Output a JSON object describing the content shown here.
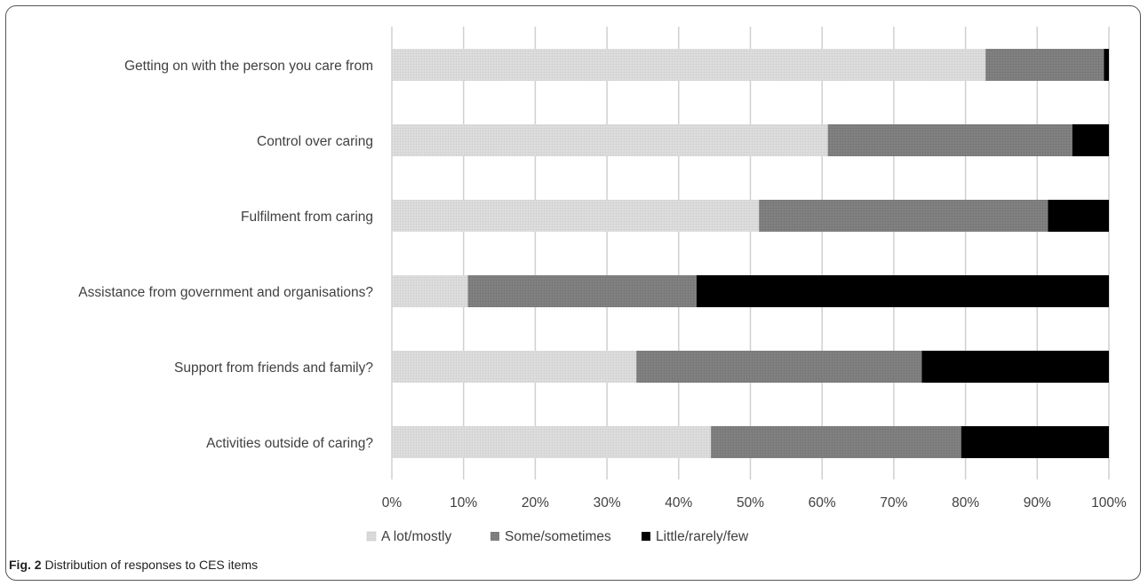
{
  "chart_data": {
    "type": "bar",
    "orientation": "horizontal",
    "stacked": true,
    "percent": true,
    "categories": [
      "Getting on with the person you care from",
      "Control over caring",
      "Fulfilment from caring",
      "Assistance from government and organisations?",
      "Support from friends and family?",
      "Activities outside of caring?"
    ],
    "series": [
      {
        "name": "A lot/mostly",
        "color": "#d9d9d9",
        "values": [
          82.8,
          60.8,
          51.2,
          10.6,
          34.1,
          44.5
        ]
      },
      {
        "name": "Some/sometimes",
        "color": "#7f7f7f",
        "values": [
          16.5,
          34.1,
          40.3,
          31.9,
          39.8,
          34.9
        ]
      },
      {
        "name": "Little/rarely/few",
        "color": "#000000",
        "values": [
          0.7,
          5.1,
          8.5,
          57.5,
          26.1,
          20.6
        ]
      }
    ],
    "xlim": [
      0,
      100
    ],
    "xticks": [
      "0%",
      "10%",
      "20%",
      "30%",
      "40%",
      "50%",
      "60%",
      "70%",
      "80%",
      "90%",
      "100%"
    ],
    "grid": true,
    "legend": "bottom",
    "title": "",
    "xlabel": "",
    "ylabel": ""
  },
  "caption": {
    "label": "Fig. 2",
    "text": " Distribution of responses to CES items"
  }
}
